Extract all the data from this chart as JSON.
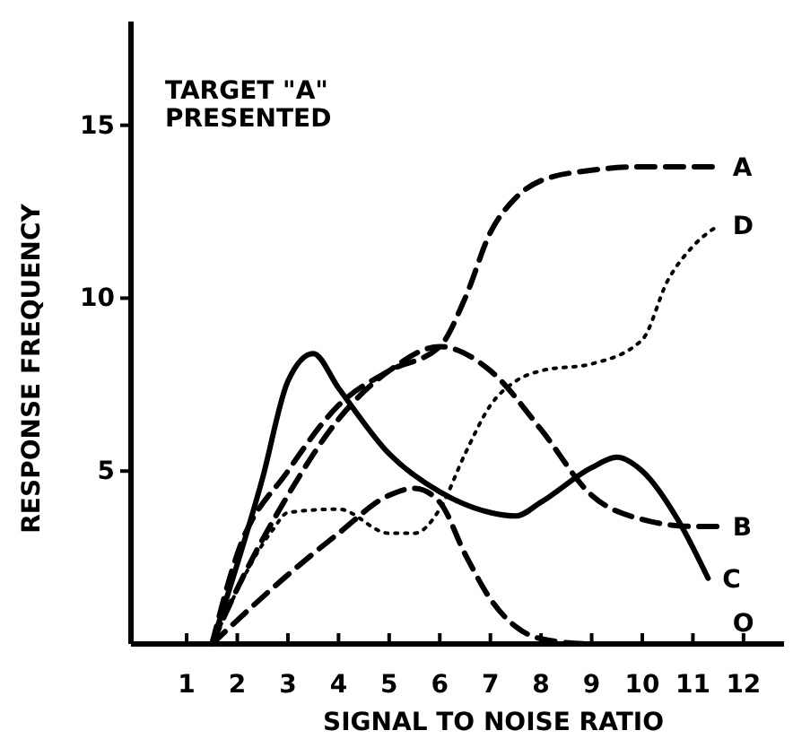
{
  "chart_data": {
    "type": "line",
    "xlabel": "SIGNAL TO NOISE RATIO",
    "ylabel": "RESPONSE FREQUENCY",
    "annotations": [
      "TARGET \"A\" PRESENTED"
    ],
    "xlim": [
      -0.1,
      12.8
    ],
    "xticks": [
      1,
      2,
      3,
      4,
      5,
      6,
      7,
      8,
      9,
      10,
      11,
      12
    ],
    "ylim": [
      0,
      18
    ],
    "yticks": [
      5,
      10,
      15
    ],
    "grid": false,
    "legend": false,
    "marker": "none",
    "series": [
      {
        "name": "A",
        "color": "#000000",
        "line_style": "dashed",
        "x": [
          1.5,
          2,
          3,
          4,
          5,
          6,
          6.5,
          7,
          7.5,
          8,
          9,
          10,
          11.5
        ],
        "values": [
          0,
          2.6,
          5,
          6.9,
          7.9,
          8.6,
          10,
          11.9,
          12.9,
          13.4,
          13.7,
          13.8,
          13.8
        ]
      },
      {
        "name": "B",
        "color": "#000000",
        "line_style": "dashed",
        "x": [
          1.5,
          2,
          3,
          4,
          5,
          6,
          7,
          8,
          9,
          10,
          11,
          11.5
        ],
        "values": [
          0,
          1.6,
          4.3,
          6.5,
          7.9,
          8.6,
          7.9,
          6.2,
          4.3,
          3.6,
          3.4,
          3.4
        ]
      },
      {
        "name": "C",
        "color": "#000000",
        "line_style": "solid",
        "x": [
          1.5,
          2.5,
          3,
          3.5,
          4,
          5,
          6,
          7,
          7.5,
          8,
          9,
          9.5,
          10,
          10.7,
          11.3
        ],
        "values": [
          0,
          4.8,
          7.6,
          8.4,
          7.4,
          5.5,
          4.4,
          3.8,
          3.7,
          4.1,
          5.1,
          5.4,
          5,
          3.6,
          1.9
        ]
      },
      {
        "name": "D",
        "color": "#000000",
        "line_style": "dotted",
        "x": [
          1.5,
          2.7,
          3,
          4,
          5,
          5.5,
          6,
          6.5,
          7,
          7.5,
          8,
          9,
          10,
          10.5,
          11,
          11.5
        ],
        "values": [
          0,
          3.3,
          3.8,
          3.9,
          3.2,
          3.2,
          3.9,
          5.5,
          6.9,
          7.6,
          7.9,
          8.1,
          8.8,
          10.5,
          11.5,
          12.1
        ]
      },
      {
        "name": "O",
        "color": "#000000",
        "line_style": "dashed",
        "x": [
          1.5,
          3,
          4,
          5,
          5.5,
          6,
          6.5,
          7,
          7.5,
          8,
          9,
          11.5
        ],
        "values": [
          0,
          2,
          3.2,
          4.3,
          4.5,
          4.1,
          2.6,
          1.3,
          0.5,
          0.15,
          0,
          0
        ]
      }
    ]
  }
}
